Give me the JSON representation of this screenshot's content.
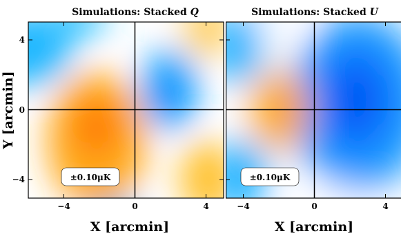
{
  "chart_data": [
    {
      "type": "heatmap",
      "title": "Simulations: Stacked Q",
      "title_text": "Simulations: Stacked ",
      "title_symbol": "Q",
      "xlabel": "X [arcmin]",
      "ylabel": "Y [arcmin]",
      "xlim": [
        -5,
        5
      ],
      "ylim": [
        -5,
        5
      ],
      "xticks": [
        -4,
        0,
        4
      ],
      "yticks": [
        -4,
        0,
        4
      ],
      "xtick_labels": [
        "−4",
        "0",
        "4"
      ],
      "ytick_labels": [
        "4",
        "0",
        "−4"
      ],
      "scale_label": "±0.10μK",
      "colormap": [
        "#00a6ff",
        "#ffffff",
        "#ff9900"
      ],
      "features": [
        {
          "kind": "positive",
          "x": -2.0,
          "y": -1.2,
          "amplitude": 0.1
        },
        {
          "kind": "positive",
          "x": 3.5,
          "y": -3.0,
          "amplitude": 0.05
        },
        {
          "kind": "positive",
          "x": 3.5,
          "y": 3.5,
          "amplitude": 0.03
        },
        {
          "kind": "negative",
          "x": 1.8,
          "y": 1.2,
          "amplitude": -0.06
        },
        {
          "kind": "negative",
          "x": -1.5,
          "y": 3.8,
          "amplitude": -0.05
        },
        {
          "kind": "negative",
          "x": 0.0,
          "y": -3.5,
          "amplitude": -0.03
        }
      ]
    },
    {
      "type": "heatmap",
      "title": "Simulations: Stacked U",
      "title_text": "Simulations: Stacked ",
      "title_symbol": "U",
      "xlabel": "X [arcmin]",
      "ylabel": "",
      "xlim": [
        -5,
        5
      ],
      "ylim": [
        -5,
        5
      ],
      "xticks": [
        -4,
        0,
        4
      ],
      "xtick_labels": [
        "−4",
        "0",
        "4"
      ],
      "scale_label": "±0.10μK",
      "colormap": [
        "#00a6ff",
        "#ffffff",
        "#ff9900"
      ],
      "features": [
        {
          "kind": "negative",
          "x": 2.2,
          "y": 0.3,
          "amplitude": -0.1
        },
        {
          "kind": "positive",
          "x": -1.5,
          "y": 0.2,
          "amplitude": 0.08
        },
        {
          "kind": "negative",
          "x": -4.5,
          "y": 3.0,
          "amplitude": -0.04
        },
        {
          "kind": "negative",
          "x": -4.0,
          "y": -3.5,
          "amplitude": -0.04
        }
      ]
    }
  ]
}
